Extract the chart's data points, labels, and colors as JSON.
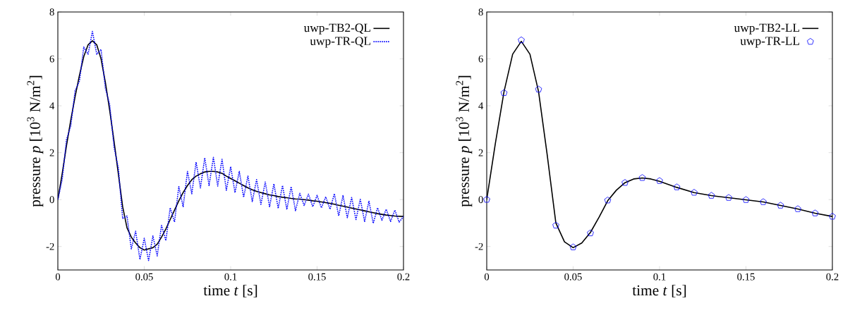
{
  "chart_data": [
    {
      "type": "line",
      "xlabel": "time *t* [s]",
      "ylabel": "pressure *p* [10$^{3}$ N/m$^{2}$]",
      "xlim": [
        0,
        0.2
      ],
      "ylim": [
        -3,
        8
      ],
      "xticks": [
        0,
        0.05,
        0.1,
        0.15,
        0.2
      ],
      "yticks": [
        -2,
        0,
        2,
        4,
        6,
        8
      ],
      "grid": false,
      "legend": "top right",
      "series": [
        {
          "name": "uwp-TB2-QL",
          "color": "#000000",
          "line_style": "solid",
          "x": [
            0,
            0.0025,
            0.005,
            0.0075,
            0.01,
            0.0125,
            0.015,
            0.0175,
            0.02,
            0.0225,
            0.025,
            0.0275,
            0.03,
            0.0325,
            0.035,
            0.0375,
            0.04,
            0.0425,
            0.045,
            0.0475,
            0.05,
            0.0525,
            0.055,
            0.0575,
            0.06,
            0.0625,
            0.065,
            0.0675,
            0.07,
            0.0725,
            0.075,
            0.0775,
            0.08,
            0.0825,
            0.085,
            0.0875,
            0.09,
            0.0925,
            0.095,
            0.0975,
            0.1,
            0.1025,
            0.105,
            0.1075,
            0.11,
            0.1125,
            0.115,
            0.1175,
            0.12,
            0.1225,
            0.125,
            0.1275,
            0.13,
            0.1325,
            0.135,
            0.1375,
            0.14,
            0.1425,
            0.145,
            0.1475,
            0.15,
            0.1525,
            0.155,
            0.1575,
            0.16,
            0.1625,
            0.165,
            0.1675,
            0.17,
            0.1725,
            0.175,
            0.1775,
            0.18,
            0.1825,
            0.185,
            0.1875,
            0.19,
            0.1925,
            0.195,
            0.1975,
            0.2
          ],
          "values": [
            0,
            1.1,
            2.3,
            3.4,
            4.4,
            5.3,
            6.1,
            6.6,
            6.77,
            6.6,
            6.0,
            5.0,
            3.8,
            2.5,
            1.1,
            -0.3,
            -1.2,
            -1.6,
            -1.85,
            -2.05,
            -2.15,
            -2.1,
            -2.05,
            -1.9,
            -1.6,
            -1.25,
            -0.85,
            -0.45,
            -0.05,
            0.3,
            0.6,
            0.85,
            1.0,
            1.1,
            1.18,
            1.2,
            1.2,
            1.18,
            1.12,
            1.0,
            0.9,
            0.8,
            0.7,
            0.6,
            0.5,
            0.42,
            0.35,
            0.3,
            0.25,
            0.2,
            0.17,
            0.13,
            0.1,
            0.08,
            0.05,
            0.03,
            0.02,
            0.0,
            -0.02,
            -0.05,
            -0.07,
            -0.1,
            -0.13,
            -0.16,
            -0.2,
            -0.24,
            -0.28,
            -0.32,
            -0.36,
            -0.4,
            -0.44,
            -0.48,
            -0.52,
            -0.56,
            -0.6,
            -0.63,
            -0.66,
            -0.68,
            -0.7,
            -0.71,
            -0.72
          ]
        },
        {
          "name": "uwp-TR-QL",
          "color": "#0000ff",
          "line_style": "dotted",
          "x": [
            0,
            0.0025,
            0.005,
            0.0075,
            0.01,
            0.0125,
            0.015,
            0.0175,
            0.02,
            0.0225,
            0.025,
            0.0275,
            0.03,
            0.0325,
            0.035,
            0.0375,
            0.04,
            0.0425,
            0.045,
            0.0475,
            0.05,
            0.0525,
            0.055,
            0.0575,
            0.06,
            0.0625,
            0.065,
            0.0675,
            0.07,
            0.0725,
            0.075,
            0.0775,
            0.08,
            0.0825,
            0.085,
            0.0875,
            0.09,
            0.0925,
            0.095,
            0.0975,
            0.1,
            0.1025,
            0.105,
            0.1075,
            0.11,
            0.1125,
            0.115,
            0.1175,
            0.12,
            0.1225,
            0.125,
            0.1275,
            0.13,
            0.1325,
            0.135,
            0.1375,
            0.14,
            0.1425,
            0.145,
            0.1475,
            0.15,
            0.1525,
            0.155,
            0.1575,
            0.16,
            0.1625,
            0.165,
            0.1675,
            0.17,
            0.1725,
            0.175,
            0.1775,
            0.18,
            0.1825,
            0.185,
            0.1875,
            0.19,
            0.1925,
            0.195,
            0.1975,
            0.2
          ],
          "values": [
            0,
            0.85,
            2.55,
            3.15,
            4.65,
            5.05,
            6.5,
            6.2,
            7.17,
            6.2,
            6.4,
            4.75,
            4.05,
            2.25,
            1.35,
            -0.8,
            -0.7,
            -2.1,
            -1.35,
            -2.55,
            -1.65,
            -2.6,
            -1.55,
            -2.4,
            -1.1,
            -1.75,
            -0.35,
            -0.95,
            0.55,
            -0.3,
            1.2,
            0.25,
            1.6,
            0.5,
            1.78,
            0.6,
            1.8,
            0.58,
            1.72,
            0.4,
            1.4,
            0.3,
            1.2,
            0.1,
            1.0,
            -0.08,
            0.85,
            -0.2,
            0.75,
            -0.3,
            0.67,
            -0.37,
            0.6,
            -0.42,
            0.55,
            -0.47,
            0.27,
            -0.25,
            0.23,
            -0.3,
            0.18,
            -0.35,
            0.12,
            -0.41,
            0.25,
            -0.69,
            0.17,
            -0.77,
            0.09,
            -0.85,
            0.01,
            -0.93,
            -0.07,
            -1.01,
            -0.35,
            -0.88,
            -0.41,
            -0.93,
            -0.45,
            -0.96,
            -0.72
          ]
        }
      ]
    },
    {
      "type": "line",
      "xlabel": "time *t* [s]",
      "ylabel": "pressure *p* [10$^{3}$ N/m$^{2}$]",
      "xlim": [
        0,
        0.2
      ],
      "ylim": [
        -3,
        8
      ],
      "xticks": [
        0,
        0.05,
        0.1,
        0.15,
        0.2
      ],
      "yticks": [
        -2,
        0,
        2,
        4,
        6,
        8
      ],
      "grid": false,
      "legend": "top right",
      "series": [
        {
          "name": "uwp-TB2-LL",
          "color": "#000000",
          "line_style": "solid",
          "x": [
            0,
            0.005,
            0.01,
            0.015,
            0.02,
            0.025,
            0.03,
            0.035,
            0.04,
            0.045,
            0.05,
            0.055,
            0.06,
            0.065,
            0.07,
            0.075,
            0.08,
            0.085,
            0.09,
            0.095,
            0.1,
            0.11,
            0.12,
            0.13,
            0.14,
            0.15,
            0.16,
            0.17,
            0.18,
            0.19,
            0.2
          ],
          "values": [
            0,
            2.4,
            4.6,
            6.2,
            6.75,
            6.2,
            4.6,
            1.9,
            -1.0,
            -1.8,
            -2.05,
            -1.85,
            -1.4,
            -0.75,
            -0.05,
            0.4,
            0.72,
            0.88,
            0.92,
            0.88,
            0.78,
            0.52,
            0.3,
            0.17,
            0.08,
            -0.01,
            -0.1,
            -0.25,
            -0.4,
            -0.58,
            -0.72
          ]
        },
        {
          "name": "uwp-TR-LL",
          "type": "scatter",
          "color": "#0000ff",
          "x": [
            0,
            0.01,
            0.02,
            0.03,
            0.04,
            0.05,
            0.06,
            0.07,
            0.08,
            0.09,
            0.1,
            0.11,
            0.12,
            0.13,
            0.14,
            0.15,
            0.16,
            0.17,
            0.18,
            0.19,
            0.2
          ],
          "values": [
            0,
            4.55,
            6.8,
            4.7,
            -1.1,
            -2.03,
            -1.43,
            -0.03,
            0.72,
            0.93,
            0.8,
            0.53,
            0.3,
            0.17,
            0.08,
            -0.01,
            -0.1,
            -0.25,
            -0.4,
            -0.58,
            -0.72
          ]
        }
      ]
    }
  ]
}
